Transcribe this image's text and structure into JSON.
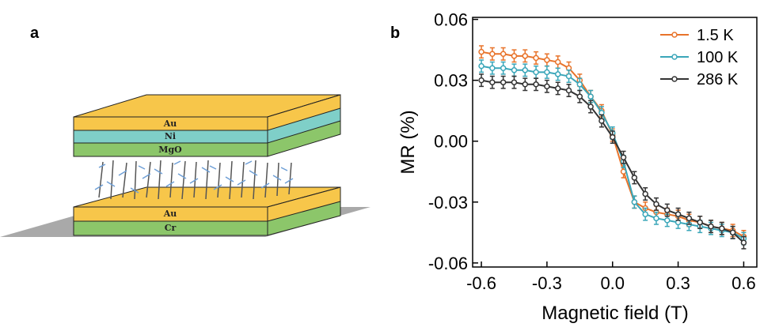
{
  "panel_labels": [
    "a",
    "b"
  ],
  "diagram": {
    "top_stack": [
      "Au",
      "Ni",
      "MgO"
    ],
    "bottom_stack": [
      "Au",
      "Cr"
    ]
  },
  "chart_data": {
    "type": "line",
    "y_label": "MR (%)",
    "x_label": "Magnetic field (T)",
    "xlim": [
      -0.64,
      0.66
    ],
    "ylim": [
      -0.062,
      0.061
    ],
    "xticks": [
      -0.6,
      -0.3,
      {
        "value": 0,
        "label": "0.0"
      },
      0.3,
      0.6
    ],
    "yticks": [
      -0.06,
      -0.03,
      {
        "value": 0,
        "label": "0.00"
      },
      0.03,
      0.06
    ],
    "legend": "upper right",
    "x": [
      -0.6,
      -0.55,
      -0.5,
      -0.45,
      -0.4,
      -0.35,
      -0.3,
      -0.25,
      -0.2,
      -0.15,
      -0.1,
      -0.05,
      0,
      0.05,
      0.1,
      0.15,
      0.2,
      0.25,
      0.3,
      0.35,
      0.4,
      0.45,
      0.5,
      0.55,
      0.6
    ],
    "series": [
      {
        "name": "1.5 K",
        "color": "#e8732a",
        "error": 0.003,
        "values": [
          0.044,
          0.043,
          0.043,
          0.042,
          0.042,
          0.041,
          0.04,
          0.039,
          0.036,
          0.03,
          0.022,
          0.015,
          0.003,
          -0.015,
          -0.03,
          -0.033,
          -0.035,
          -0.036,
          -0.037,
          -0.039,
          -0.04,
          -0.042,
          -0.043,
          -0.044,
          -0.047
        ]
      },
      {
        "name": "100 K",
        "color": "#3aa6b9",
        "error": 0.003,
        "values": [
          0.037,
          0.036,
          0.036,
          0.035,
          0.035,
          0.034,
          0.034,
          0.033,
          0.032,
          0.028,
          0.022,
          0.014,
          0.004,
          -0.01,
          -0.03,
          -0.036,
          -0.038,
          -0.039,
          -0.04,
          -0.041,
          -0.042,
          -0.043,
          -0.044,
          -0.045,
          -0.048
        ]
      },
      {
        "name": "286 K",
        "color": "#333333",
        "error": 0.003,
        "values": [
          0.03,
          0.029,
          0.029,
          0.029,
          0.028,
          0.028,
          0.027,
          0.026,
          0.025,
          0.022,
          0.017,
          0.01,
          0.002,
          -0.008,
          -0.018,
          -0.026,
          -0.031,
          -0.034,
          -0.036,
          -0.038,
          -0.04,
          -0.042,
          -0.043,
          -0.045,
          -0.05
        ]
      }
    ]
  }
}
